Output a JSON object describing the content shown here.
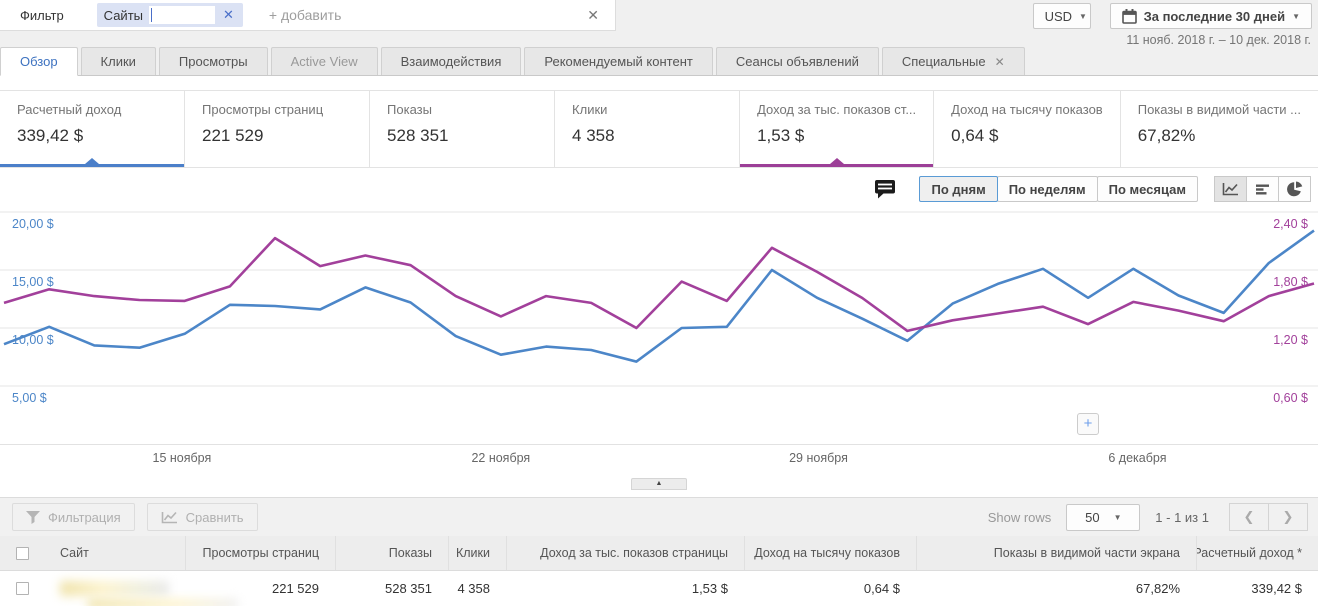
{
  "colors": {
    "accent_blue": "#3d72c0",
    "sel_blue": "#4b7fc9",
    "sel_purple": "#9c3f97",
    "series_blue": "#4c86c8",
    "series_purple": "#a2409b"
  },
  "icons": {
    "close": "✕",
    "caret_down": "▼",
    "collapse_up": "▲",
    "plus": "+",
    "chevron_left": "❮",
    "chevron_right": "❯"
  },
  "filter_bar": {
    "label": "Фильтр",
    "chip_label": "Сайты",
    "add_placeholder": "+ добавить"
  },
  "currency": {
    "value": "USD"
  },
  "date_picker": {
    "label": "За последние 30 дней",
    "range": "11 нояб. 2018 г. – 10 дек. 2018 г."
  },
  "tabs": [
    {
      "label": "Обзор"
    },
    {
      "label": "Клики"
    },
    {
      "label": "Просмотры"
    },
    {
      "label": "Active View"
    },
    {
      "label": "Взаимодействия"
    },
    {
      "label": "Рекомендуемый контент"
    },
    {
      "label": "Сеансы объявлений"
    },
    {
      "label": "Специальные"
    }
  ],
  "metrics": [
    {
      "label": "Расчетный доход",
      "value": "339,42 $"
    },
    {
      "label": "Просмотры страниц",
      "value": "221 529"
    },
    {
      "label": "Показы",
      "value": "528 351"
    },
    {
      "label": "Клики",
      "value": "4 358"
    },
    {
      "label": "Доход за тыс. показов ст...",
      "value": "1,53 $"
    },
    {
      "label": "Доход на тысячу показов",
      "value": "0,64 $"
    },
    {
      "label": "Показы в видимой части ...",
      "value": "67,82%"
    }
  ],
  "chart_controls": {
    "granularity": [
      {
        "label": "По дням"
      },
      {
        "label": "По неделям"
      },
      {
        "label": "По месяцам"
      }
    ]
  },
  "chart_data": {
    "type": "line",
    "days_total": 30,
    "x_tick_labels": [
      "15 ноября",
      "22 ноября",
      "29 ноября",
      "6 декабря"
    ],
    "left_axis": {
      "tick_labels": [
        "20,00 $",
        "15,00 $",
        "10,00 $",
        "5,00 $"
      ],
      "tick_values": [
        20,
        15,
        10,
        5
      ]
    },
    "right_axis": {
      "tick_labels": [
        "2,40 $",
        "1,80 $",
        "1,20 $",
        "0,60 $"
      ],
      "tick_values": [
        2.4,
        1.8,
        1.2,
        0.6
      ]
    },
    "series": [
      {
        "name": "Расчетный доход",
        "axis": "left",
        "color": "#4c86c8",
        "values": [
          8.6,
          10.1,
          8.5,
          8.3,
          9.5,
          12.0,
          11.9,
          11.6,
          13.5,
          12.2,
          9.3,
          7.7,
          8.4,
          8.1,
          7.1,
          10.0,
          10.1,
          15.0,
          12.6,
          10.8,
          8.9,
          12.1,
          13.8,
          15.1,
          12.6,
          15.1,
          12.8,
          11.3,
          15.6,
          18.4
        ]
      },
      {
        "name": "Доход за тыс. показов страницы",
        "axis": "right",
        "color": "#a2409b",
        "values": [
          1.46,
          1.6,
          1.53,
          1.49,
          1.48,
          1.63,
          2.13,
          1.84,
          1.95,
          1.85,
          1.53,
          1.32,
          1.53,
          1.46,
          1.2,
          1.68,
          1.48,
          2.03,
          1.78,
          1.51,
          1.17,
          1.28,
          1.35,
          1.42,
          1.24,
          1.47,
          1.38,
          1.27,
          1.53,
          1.66
        ]
      }
    ]
  },
  "toolbar": {
    "filter_label": "Фильтрация",
    "compare_label": "Сравнить",
    "show_rows_label": "Show rows",
    "rows_value": "50",
    "pagination": "1 - 1 из 1"
  },
  "table": {
    "headers": [
      "Сайт",
      "Просмотры страниц",
      "Показы",
      "Клики",
      "Доход за тыс. показов страницы",
      "Доход на тысячу показов",
      "Показы в видимой части экрана",
      "Расчетный доход *"
    ],
    "rows": [
      {
        "site": "",
        "page_views": "221 529",
        "impressions": "528 351",
        "clicks": "4 358",
        "page_rpm": "1,53 $",
        "impression_rpm": "0,64 $",
        "viewability": "67,82%",
        "estimated_earnings": "339,42 $"
      }
    ]
  }
}
